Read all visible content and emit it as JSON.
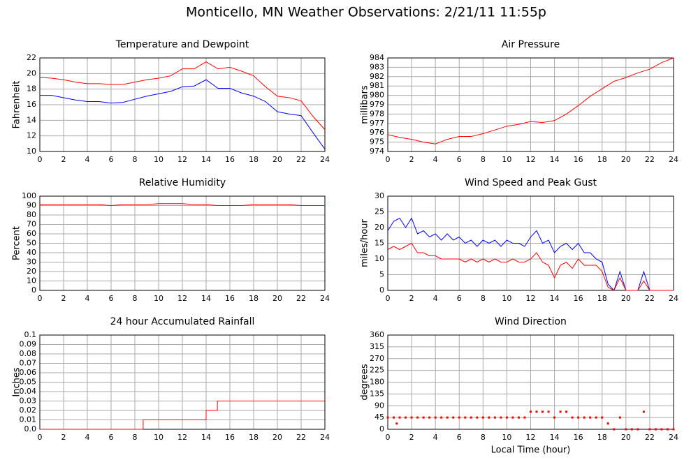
{
  "title": "Monticello, MN Weather Observations: 2/21/11 11:55p",
  "chart_data": [
    {
      "type": "line",
      "title": "Temperature and Dewpoint",
      "ylabel": "Fahrenheit",
      "x": [
        0,
        1,
        2,
        3,
        4,
        5,
        6,
        7,
        8,
        9,
        10,
        11,
        12,
        13,
        14,
        15,
        16,
        17,
        18,
        19,
        20,
        21,
        22,
        23,
        24
      ],
      "series": [
        {
          "color": "#ff0000",
          "values": [
            19.5,
            19.4,
            19.2,
            18.9,
            18.7,
            18.7,
            18.6,
            18.6,
            18.9,
            19.2,
            19.4,
            19.7,
            20.6,
            20.6,
            21.5,
            20.6,
            20.8,
            20.3,
            19.7,
            18.3,
            17.1,
            16.9,
            16.5,
            14.5,
            12.8
          ]
        },
        {
          "color": "#0000ff",
          "values": [
            17.2,
            17.2,
            16.9,
            16.6,
            16.4,
            16.4,
            16.2,
            16.3,
            16.7,
            17.1,
            17.4,
            17.7,
            18.3,
            18.4,
            19.2,
            18.1,
            18.1,
            17.5,
            17.1,
            16.4,
            15.1,
            14.8,
            14.6,
            12.4,
            10.3
          ]
        }
      ],
      "xlim": [
        0,
        24
      ],
      "xticks": [
        0,
        2,
        4,
        6,
        8,
        10,
        12,
        14,
        16,
        18,
        20,
        22,
        24
      ],
      "ylim": [
        10,
        22
      ],
      "yticks": [
        10,
        12,
        14,
        16,
        18,
        20,
        22
      ],
      "grid": true
    },
    {
      "type": "line",
      "title": "Air Pressure",
      "ylabel": "millibars",
      "x": [
        0,
        1,
        2,
        3,
        4,
        5,
        6,
        7,
        8,
        9,
        10,
        11,
        12,
        13,
        14,
        15,
        16,
        17,
        18,
        19,
        20,
        21,
        22,
        23,
        24
      ],
      "series": [
        {
          "color": "#ff0000",
          "values": [
            975.8,
            975.5,
            975.3,
            975.0,
            974.8,
            975.3,
            975.6,
            975.6,
            975.9,
            976.3,
            976.7,
            976.9,
            977.2,
            977.1,
            977.3,
            978.0,
            978.9,
            979.9,
            980.7,
            981.5,
            981.9,
            982.4,
            982.8,
            983.5,
            984.0
          ]
        }
      ],
      "xlim": [
        0,
        24
      ],
      "xticks": [
        0,
        2,
        4,
        6,
        8,
        10,
        12,
        14,
        16,
        18,
        20,
        22,
        24
      ],
      "ylim": [
        974,
        984
      ],
      "yticks": [
        974,
        975,
        976,
        977,
        978,
        979,
        980,
        981,
        982,
        983,
        984
      ],
      "grid": true
    },
    {
      "type": "line",
      "title": "Relative Humidity",
      "ylabel": "Percent",
      "x": [
        0,
        1,
        2,
        3,
        4,
        5,
        6,
        7,
        8,
        9,
        10,
        11,
        12,
        13,
        14,
        15,
        16,
        17,
        18,
        19,
        20,
        21,
        22,
        23,
        24
      ],
      "series": [
        {
          "color": "#ff0000",
          "values": [
            91,
            91,
            91,
            91,
            91,
            91,
            90,
            91,
            91,
            91,
            92,
            92,
            92,
            91,
            91,
            90,
            90,
            90,
            91,
            91,
            91,
            91,
            90,
            90,
            90
          ]
        }
      ],
      "xlim": [
        0,
        24
      ],
      "xticks": [
        0,
        2,
        4,
        6,
        8,
        10,
        12,
        14,
        16,
        18,
        20,
        22,
        24
      ],
      "ylim": [
        0,
        100
      ],
      "yticks": [
        0,
        10,
        20,
        30,
        40,
        50,
        60,
        70,
        80,
        90,
        100
      ],
      "grid": true
    },
    {
      "type": "line",
      "title": "Wind Speed and Peak Gust",
      "ylabel": "miles/hour",
      "x": [
        0,
        0.5,
        1,
        1.5,
        2,
        2.5,
        3,
        3.5,
        4,
        4.5,
        5,
        5.5,
        6,
        6.5,
        7,
        7.5,
        8,
        8.5,
        9,
        9.5,
        10,
        10.5,
        11,
        11.5,
        12,
        12.5,
        13,
        13.5,
        14,
        14.5,
        15,
        15.5,
        16,
        16.5,
        17,
        17.5,
        18,
        18.5,
        19,
        19.5,
        20,
        20.5,
        21,
        21.5,
        22,
        22.5,
        23,
        23.5,
        24
      ],
      "series": [
        {
          "color": "#0000ff",
          "values": [
            19,
            22,
            23,
            20,
            23,
            18,
            19,
            17,
            18,
            16,
            18,
            16,
            17,
            15,
            16,
            14,
            16,
            15,
            16,
            14,
            16,
            15,
            15,
            14,
            17,
            19,
            15,
            16,
            12,
            14,
            15,
            13,
            15,
            12,
            12,
            10,
            9,
            2,
            0,
            6,
            0,
            0,
            0,
            6,
            0,
            0,
            0,
            0,
            0
          ]
        },
        {
          "color": "#ff0000",
          "values": [
            13,
            14,
            13,
            14,
            15,
            12,
            12,
            11,
            11,
            10,
            10,
            10,
            10,
            9,
            10,
            9,
            10,
            9,
            10,
            9,
            9,
            10,
            9,
            9,
            10,
            12,
            9,
            8,
            4,
            8,
            9,
            7,
            10,
            8,
            8,
            8,
            6,
            1,
            0,
            4,
            0,
            0,
            0,
            3,
            0,
            0,
            0,
            0,
            0
          ]
        }
      ],
      "xlim": [
        0,
        24
      ],
      "xticks": [
        0,
        2,
        4,
        6,
        8,
        10,
        12,
        14,
        16,
        18,
        20,
        22,
        24
      ],
      "ylim": [
        0,
        30
      ],
      "yticks": [
        0,
        5,
        10,
        15,
        20,
        25,
        30
      ],
      "grid": true
    },
    {
      "type": "line",
      "title": "24 hour Accumulated Rainfall",
      "ylabel": "Inches",
      "step": true,
      "x": [
        0,
        8.7,
        14.0,
        14.95,
        24
      ],
      "series": [
        {
          "color": "#ff0000",
          "values": [
            0,
            0.01,
            0.02,
            0.03,
            0.03
          ]
        }
      ],
      "xlim": [
        0,
        24
      ],
      "xticks": [
        0,
        2,
        4,
        6,
        8,
        10,
        12,
        14,
        16,
        18,
        20,
        22,
        24
      ],
      "ylim": [
        0,
        0.1
      ],
      "yticks": [
        {
          "value": 0,
          "label": "0.0"
        },
        0.01,
        0.02,
        0.03,
        0.04,
        0.05,
        0.06,
        0.07,
        0.08,
        0.09,
        0.1
      ],
      "grid": true
    },
    {
      "type": "scatter",
      "title": "Wind Direction",
      "ylabel": "degrees",
      "xlabel": "Local Time (hour)",
      "x": [
        0,
        0.5,
        0.75,
        1,
        1.5,
        2,
        2.5,
        3,
        3.5,
        4,
        4.5,
        5,
        5.5,
        6,
        6.5,
        7,
        7.5,
        8,
        8.5,
        9,
        9.5,
        10,
        10.5,
        11,
        11.5,
        12,
        12.5,
        13,
        13.5,
        14,
        14.5,
        15,
        15.5,
        16,
        16.5,
        17,
        17.5,
        18,
        18.5,
        19,
        19.5,
        20,
        20.5,
        21,
        21.5,
        22,
        22.5,
        23,
        23.5,
        24
      ],
      "series": [
        {
          "color": "#ff0000",
          "values": [
            45,
            45,
            22,
            45,
            45,
            45,
            45,
            45,
            45,
            45,
            45,
            45,
            45,
            45,
            45,
            45,
            45,
            45,
            45,
            45,
            45,
            45,
            45,
            45,
            45,
            67,
            67,
            67,
            67,
            45,
            67,
            67,
            45,
            45,
            45,
            45,
            45,
            45,
            22,
            0,
            45,
            0,
            0,
            0,
            67,
            0,
            0,
            0,
            0,
            0
          ]
        }
      ],
      "xlim": [
        0,
        24
      ],
      "xticks": [
        0,
        2,
        4,
        6,
        8,
        10,
        12,
        14,
        16,
        18,
        20,
        22,
        24
      ],
      "ylim": [
        0,
        360
      ],
      "yticks": [
        0,
        45,
        90,
        135,
        180,
        225,
        270,
        315,
        360
      ],
      "grid": true
    }
  ]
}
